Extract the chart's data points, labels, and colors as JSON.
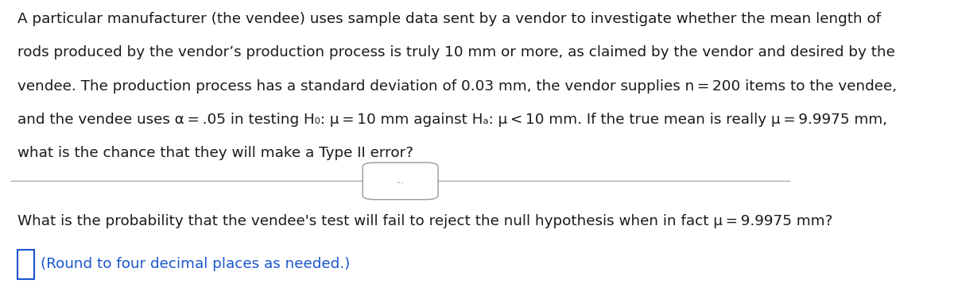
{
  "background_color": "#ffffff",
  "para1_line1": "A particular manufacturer (the vendee) uses sample data sent by a vendor to investigate whether the mean length of",
  "para1_line2": "rods produced by the vendor’s production process is truly 10 mm or more, as claimed by the vendor and desired by the",
  "para1_line3": "vendee. The production process has a standard deviation of 0.03 mm, the vendor supplies n = 200 items to the vendee,",
  "para1_line4": "and the vendee uses α = .05 in testing H₀: μ = 10 mm against Hₐ: μ < 10 mm. If the true mean is really μ = 9.9975 mm,",
  "para1_line5": "what is the chance that they will make a Type II error?",
  "divider_text": "...",
  "para2": "What is the probability that the vendee's test will fail to reject the null hypothesis when in fact μ = 9.9975 mm?",
  "answer_hint": "(Round to four decimal places as needed.)",
  "answer_hint_color": "#1a55cd",
  "box_color": "#1a55cd",
  "text_color": "#1a1a1a",
  "divider_color": "#aaaaaa",
  "btn_edge_color": "#999999",
  "btn_text_color": "#555555",
  "font_size_main": 13.2,
  "font_size_btn": 8
}
